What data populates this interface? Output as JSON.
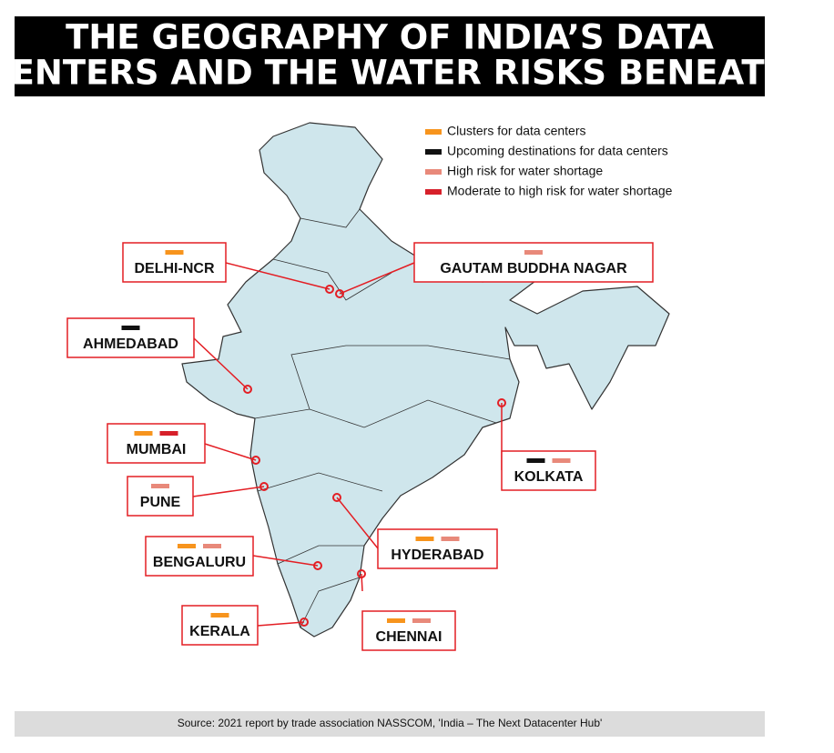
{
  "header": {
    "title_lines": [
      "THE GEOGRAPHY OF INDIA’S DATA",
      "CENTERS AND THE WATER RISKS BENEATH"
    ]
  },
  "legend": [
    {
      "label": "Clusters for data centers",
      "color": "#f7941d"
    },
    {
      "label": "Upcoming destinations for data centers",
      "color": "#111111"
    },
    {
      "label": "High risk for water shortage",
      "color": "#e8897a"
    },
    {
      "label": "Moderate to high risk for water shortage",
      "color": "#d7202a"
    }
  ],
  "cities": [
    {
      "name": "DELHI-NCR",
      "tags": [
        0
      ]
    },
    {
      "name": "GAUTAM BUDDHA NAGAR",
      "tags": [
        2
      ]
    },
    {
      "name": "AHMEDABAD",
      "tags": [
        1
      ]
    },
    {
      "name": "MUMBAI",
      "tags": [
        0,
        3
      ]
    },
    {
      "name": "PUNE",
      "tags": [
        2
      ]
    },
    {
      "name": "KOLKATA",
      "tags": [
        1,
        2
      ]
    },
    {
      "name": "HYDERABAD",
      "tags": [
        0,
        2
      ]
    },
    {
      "name": "BENGALURU",
      "tags": [
        0,
        2
      ]
    },
    {
      "name": "KERALA",
      "tags": [
        0
      ]
    },
    {
      "name": "CHENNAI",
      "tags": [
        0,
        2
      ]
    }
  ],
  "source": "Source: 2021 report by trade association NASSCOM, 'India – The Next Datacenter Hub'"
}
